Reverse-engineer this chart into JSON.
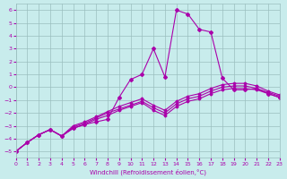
{
  "xlabel": "Windchill (Refroidissement éolien,°C)",
  "ylabel": "",
  "xlim": [
    0,
    23
  ],
  "ylim": [
    -5.5,
    6.5
  ],
  "yticks": [
    -5,
    -4,
    -3,
    -2,
    -1,
    0,
    1,
    2,
    3,
    4,
    5,
    6
  ],
  "xticks": [
    0,
    1,
    2,
    3,
    4,
    5,
    6,
    7,
    8,
    9,
    10,
    11,
    12,
    13,
    14,
    15,
    16,
    17,
    18,
    19,
    20,
    21,
    22,
    23
  ],
  "bg_color": "#c8ecec",
  "grid_color": "#9bbfbf",
  "line_color": "#aa00aa",
  "curves": [
    [
      0,
      1,
      2,
      3,
      4,
      5,
      6,
      7,
      8,
      9,
      10,
      11,
      12,
      13,
      14,
      15,
      16,
      17,
      18,
      19,
      20,
      21,
      22,
      23
    ],
    [
      -5.0,
      -4.3,
      -3.7,
      -3.3,
      -3.8,
      -3.2,
      -2.9,
      -2.7,
      -2.5,
      -0.8,
      0.6,
      1.0,
      3.0,
      0.8,
      6.0,
      5.7,
      4.5,
      4.3,
      0.7,
      -0.2,
      -0.2,
      -0.1,
      -0.5,
      -0.8
    ],
    [
      -5.0,
      -4.3,
      -3.7,
      -3.3,
      -3.8,
      -3.2,
      -2.9,
      -2.5,
      -2.2,
      -1.8,
      -1.5,
      -1.2,
      -1.8,
      -2.2,
      -1.5,
      -1.1,
      -0.9,
      -0.5,
      -0.2,
      -0.1,
      -0.1,
      -0.2,
      -0.5,
      -0.8
    ],
    [
      -5.0,
      -4.3,
      -3.7,
      -3.3,
      -3.8,
      -3.1,
      -2.8,
      -2.4,
      -2.0,
      -1.7,
      -1.4,
      -1.1,
      -1.6,
      -2.0,
      -1.3,
      -0.9,
      -0.7,
      -0.3,
      0.0,
      0.1,
      0.1,
      -0.1,
      -0.4,
      -0.7
    ],
    [
      -5.0,
      -4.3,
      -3.7,
      -3.3,
      -3.8,
      -3.0,
      -2.7,
      -2.3,
      -1.9,
      -1.5,
      -1.2,
      -0.9,
      -1.4,
      -1.8,
      -1.1,
      -0.7,
      -0.5,
      -0.1,
      0.2,
      0.3,
      0.3,
      0.1,
      -0.3,
      -0.6
    ]
  ]
}
